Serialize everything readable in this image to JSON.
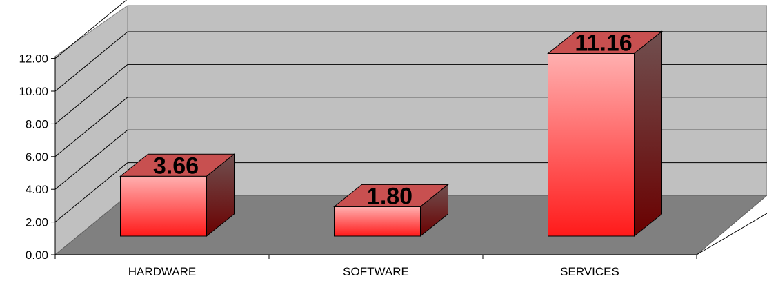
{
  "chart_data": {
    "type": "bar",
    "style": "3d-column",
    "title": "",
    "xlabel": "",
    "ylabel": "",
    "categories": [
      "HARDWARE",
      "SOFTWARE",
      "SERVICES"
    ],
    "values": [
      3.66,
      1.8,
      11.16
    ],
    "data_labels": [
      "3.66",
      "1.80",
      "11.16"
    ],
    "y_ticks": [
      "0.00",
      "2.00",
      "4.00",
      "6.00",
      "8.00",
      "10.00",
      "12.00"
    ],
    "ylim": [
      0,
      12
    ],
    "grid": true,
    "legend": "none",
    "colors": {
      "bar_front_top": "#ffb0b0",
      "bar_front_bottom": "#ff1a1a",
      "bar_top": "#c85050",
      "bar_side_top": "#705050",
      "bar_side_bottom": "#6a0000",
      "wall": "#c0c0c0",
      "floor": "#808080",
      "grid": "#000000"
    }
  }
}
